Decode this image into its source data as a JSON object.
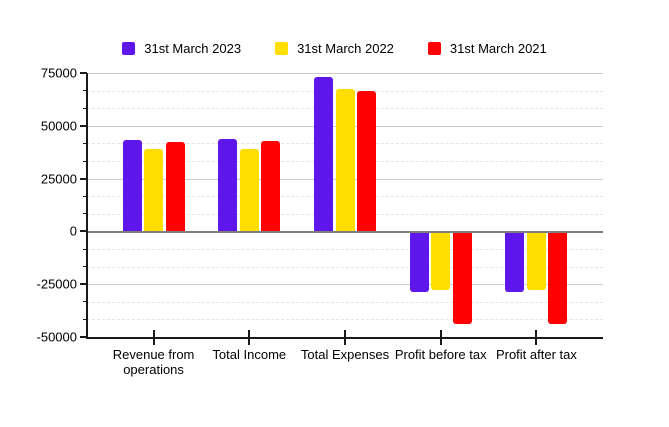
{
  "chart_data": {
    "type": "bar",
    "title": "",
    "xlabel": "",
    "ylabel": "",
    "categories": [
      "Revenue from operations",
      "Total Income",
      "Total Expenses",
      "Profit before tax",
      "Profit after tax"
    ],
    "series": [
      {
        "name": "31st March 2023",
        "color": "#5E17EB",
        "values": [
          43300,
          43700,
          72900,
          -28900,
          -28900
        ]
      },
      {
        "name": "31st March 2022",
        "color": "#FFDE00",
        "values": [
          38800,
          39000,
          67400,
          -27800,
          -27800
        ]
      },
      {
        "name": "31st March 2021",
        "color": "#FF0000",
        "values": [
          42500,
          43000,
          66500,
          -43900,
          -43900
        ]
      }
    ],
    "ylim": [
      -50000,
      75000
    ],
    "y_major_step": 25000,
    "y_minor_per_major": 3,
    "y_tick_labels": [
      "75000",
      "50000",
      "25000",
      "0",
      "-25000",
      "-50000"
    ],
    "grid": true,
    "legend_position": "top",
    "category_centers_pct": [
      12.9,
      31.45,
      50,
      68.55,
      87.1
    ],
    "colors": {
      "axis": "#1a1a1a",
      "grid_major": "#cccccc",
      "grid_minor": "#e5e5e5",
      "zero_line": "#7f7f7f",
      "text": "#000000",
      "background": "#ffffff"
    }
  }
}
